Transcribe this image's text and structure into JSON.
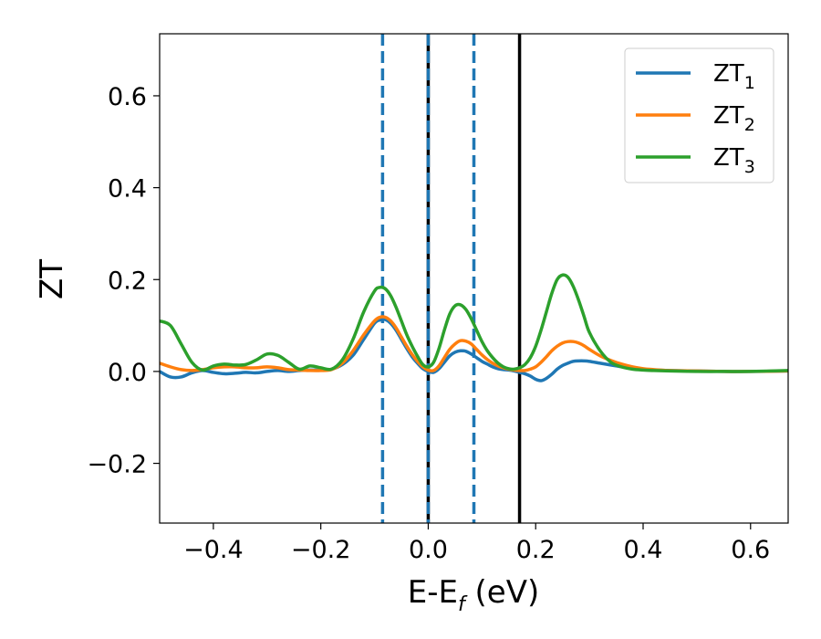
{
  "chart_data": {
    "type": "line",
    "xlabel": {
      "main": "E-E",
      "sub": "f",
      "unit": " (eV)"
    },
    "ylabel": "ZT",
    "xlim": [
      -0.5,
      0.67
    ],
    "ylim": [
      -0.33,
      0.735
    ],
    "x_ticks": [
      -0.4,
      -0.2,
      0.0,
      0.2,
      0.4,
      0.6
    ],
    "x_tick_labels": [
      "−0.4",
      "−0.2",
      "0.0",
      "0.2",
      "0.4",
      "0.6"
    ],
    "y_ticks": [
      -0.2,
      0.0,
      0.2,
      0.4,
      0.6
    ],
    "y_tick_labels": [
      "−0.2",
      "0.0",
      "0.2",
      "0.4",
      "0.6"
    ],
    "grid": false,
    "legend_position": "top-right",
    "vlines": [
      {
        "x": -0.085,
        "style": "dashed",
        "color": "#1f77b4"
      },
      {
        "x": 0.0,
        "style": "solid",
        "color": "#000000"
      },
      {
        "x": 0.0,
        "style": "dashed",
        "color": "#1f77b4"
      },
      {
        "x": 0.085,
        "style": "dashed",
        "color": "#1f77b4"
      },
      {
        "x": 0.17,
        "style": "solid",
        "color": "#000000"
      }
    ],
    "series": [
      {
        "name": "ZT",
        "name_sub": "1",
        "color": "#1f77b4",
        "x": [
          -0.5,
          -0.48,
          -0.46,
          -0.44,
          -0.42,
          -0.4,
          -0.38,
          -0.36,
          -0.34,
          -0.32,
          -0.3,
          -0.28,
          -0.26,
          -0.24,
          -0.22,
          -0.2,
          -0.18,
          -0.16,
          -0.14,
          -0.12,
          -0.1,
          -0.09,
          -0.08,
          -0.07,
          -0.06,
          -0.05,
          -0.04,
          -0.03,
          -0.02,
          -0.01,
          0.0,
          0.01,
          0.02,
          0.03,
          0.04,
          0.05,
          0.06,
          0.07,
          0.08,
          0.09,
          0.1,
          0.11,
          0.12,
          0.13,
          0.14,
          0.15,
          0.16,
          0.17,
          0.18,
          0.19,
          0.2,
          0.21,
          0.22,
          0.23,
          0.24,
          0.25,
          0.26,
          0.27,
          0.28,
          0.29,
          0.3,
          0.32,
          0.34,
          0.36,
          0.38,
          0.4,
          0.42,
          0.45,
          0.5,
          0.55,
          0.6,
          0.67
        ],
        "y": [
          0.0,
          -0.012,
          -0.012,
          -0.003,
          0.002,
          -0.002,
          -0.005,
          -0.004,
          -0.002,
          -0.003,
          0.0,
          0.002,
          0.0,
          0.002,
          0.003,
          0.003,
          0.005,
          0.015,
          0.035,
          0.07,
          0.105,
          0.112,
          0.113,
          0.105,
          0.09,
          0.07,
          0.05,
          0.032,
          0.018,
          0.006,
          0.0,
          -0.002,
          0.006,
          0.02,
          0.034,
          0.042,
          0.045,
          0.044,
          0.038,
          0.03,
          0.022,
          0.016,
          0.01,
          0.006,
          0.004,
          0.003,
          0.001,
          -0.002,
          -0.005,
          -0.01,
          -0.017,
          -0.02,
          -0.015,
          -0.006,
          0.005,
          0.013,
          0.018,
          0.022,
          0.023,
          0.023,
          0.022,
          0.018,
          0.014,
          0.01,
          0.007,
          0.004,
          0.003,
          0.002,
          0.001,
          0.0,
          0.0,
          0.001
        ]
      },
      {
        "name": "ZT",
        "name_sub": "2",
        "color": "#ff7f0e",
        "x": [
          -0.5,
          -0.48,
          -0.46,
          -0.44,
          -0.42,
          -0.4,
          -0.38,
          -0.36,
          -0.34,
          -0.32,
          -0.3,
          -0.28,
          -0.26,
          -0.24,
          -0.22,
          -0.2,
          -0.18,
          -0.16,
          -0.14,
          -0.12,
          -0.1,
          -0.09,
          -0.08,
          -0.07,
          -0.06,
          -0.05,
          -0.04,
          -0.03,
          -0.02,
          -0.01,
          0.0,
          0.01,
          0.02,
          0.03,
          0.04,
          0.05,
          0.06,
          0.07,
          0.08,
          0.09,
          0.1,
          0.11,
          0.12,
          0.13,
          0.14,
          0.15,
          0.16,
          0.17,
          0.18,
          0.19,
          0.2,
          0.21,
          0.22,
          0.23,
          0.24,
          0.25,
          0.26,
          0.27,
          0.28,
          0.29,
          0.3,
          0.32,
          0.34,
          0.36,
          0.38,
          0.4,
          0.42,
          0.45,
          0.5,
          0.55,
          0.6,
          0.67
        ],
        "y": [
          0.018,
          0.01,
          0.004,
          0.002,
          0.004,
          0.008,
          0.01,
          0.01,
          0.008,
          0.008,
          0.01,
          0.008,
          0.004,
          0.003,
          0.002,
          0.002,
          0.004,
          0.018,
          0.045,
          0.08,
          0.11,
          0.118,
          0.118,
          0.11,
          0.095,
          0.075,
          0.055,
          0.037,
          0.022,
          0.01,
          0.003,
          0.002,
          0.012,
          0.03,
          0.048,
          0.06,
          0.067,
          0.066,
          0.06,
          0.048,
          0.036,
          0.026,
          0.018,
          0.012,
          0.008,
          0.005,
          0.003,
          0.002,
          0.002,
          0.005,
          0.01,
          0.02,
          0.032,
          0.045,
          0.055,
          0.062,
          0.065,
          0.065,
          0.062,
          0.056,
          0.048,
          0.034,
          0.024,
          0.016,
          0.01,
          0.006,
          0.004,
          0.002,
          0.001,
          0.0,
          0.0,
          0.001
        ]
      },
      {
        "name": "ZT",
        "name_sub": "3",
        "color": "#2ca02c",
        "x": [
          -0.5,
          -0.48,
          -0.46,
          -0.44,
          -0.42,
          -0.4,
          -0.38,
          -0.36,
          -0.34,
          -0.32,
          -0.3,
          -0.28,
          -0.26,
          -0.24,
          -0.22,
          -0.2,
          -0.18,
          -0.16,
          -0.14,
          -0.12,
          -0.1,
          -0.09,
          -0.08,
          -0.07,
          -0.06,
          -0.05,
          -0.04,
          -0.03,
          -0.02,
          -0.01,
          0.0,
          0.01,
          0.02,
          0.03,
          0.04,
          0.05,
          0.06,
          0.07,
          0.08,
          0.09,
          0.1,
          0.11,
          0.12,
          0.13,
          0.14,
          0.15,
          0.16,
          0.17,
          0.18,
          0.19,
          0.2,
          0.21,
          0.22,
          0.23,
          0.24,
          0.25,
          0.26,
          0.27,
          0.28,
          0.29,
          0.3,
          0.32,
          0.34,
          0.36,
          0.38,
          0.4,
          0.42,
          0.45,
          0.5,
          0.55,
          0.6,
          0.67
        ],
        "y": [
          0.11,
          0.1,
          0.06,
          0.02,
          0.003,
          0.012,
          0.016,
          0.014,
          0.015,
          0.025,
          0.038,
          0.035,
          0.02,
          0.005,
          0.012,
          0.008,
          0.005,
          0.025,
          0.07,
          0.13,
          0.175,
          0.183,
          0.18,
          0.165,
          0.14,
          0.11,
          0.08,
          0.055,
          0.033,
          0.015,
          0.01,
          0.02,
          0.05,
          0.09,
          0.125,
          0.143,
          0.145,
          0.135,
          0.115,
          0.09,
          0.065,
          0.045,
          0.03,
          0.018,
          0.01,
          0.006,
          0.005,
          0.008,
          0.015,
          0.03,
          0.055,
          0.09,
          0.13,
          0.17,
          0.2,
          0.21,
          0.205,
          0.185,
          0.155,
          0.12,
          0.085,
          0.045,
          0.02,
          0.01,
          0.005,
          0.003,
          0.002,
          0.001,
          0.0,
          0.0,
          0.0,
          0.002
        ]
      }
    ]
  }
}
